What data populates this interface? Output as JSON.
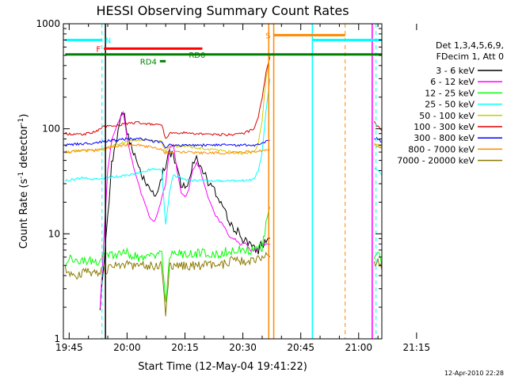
{
  "chart_data": {
    "type": "line",
    "title": "HESSI Observing Summary Count Rates",
    "xlabel": "Start Time (12-May-04 19:41:22)",
    "ylabel": "Count Rate (s",
    "ylabel_sup": "-1",
    "ylabel_mid": " detector",
    "ylabel_end": ")",
    "x_range_min": [
      -1.5,
      81
    ],
    "ylim": [
      1,
      1000
    ],
    "yscale": "log",
    "x_ticks": [
      "19:45",
      "20:00",
      "20:15",
      "20:30",
      "20:45",
      "21:00",
      "21:15"
    ],
    "y_ticks": [
      "1",
      "10",
      "100",
      "1000"
    ],
    "legend_header": [
      "Det 1,3,4,5,6,9,",
      "FDecim 1, Att 0"
    ],
    "footer": "12-Apr-2010 22:28",
    "series": [
      {
        "name": "3 - 6 keV",
        "color": "#000000",
        "x": [
          -1,
          8,
          10,
          11,
          12,
          13,
          14,
          15,
          16,
          17,
          18,
          19,
          20,
          21,
          22,
          23,
          24,
          25,
          26,
          27,
          28,
          29,
          30,
          31,
          32,
          33,
          34,
          35,
          36,
          37,
          38,
          39,
          40,
          41,
          42,
          43,
          44,
          45,
          46,
          47,
          48,
          49,
          50,
          51,
          52
        ],
        "y": [
          null,
          2,
          14,
          45,
          70,
          110,
          150,
          95,
          70,
          55,
          42,
          35,
          28,
          25,
          24,
          28,
          35,
          45,
          60,
          55,
          40,
          30,
          27,
          30,
          45,
          50,
          45,
          40,
          30,
          28,
          24,
          20,
          17,
          14,
          12,
          11,
          10,
          9,
          8,
          8,
          7,
          7,
          8,
          8,
          9
        ]
      },
      {
        "name": "6 - 12 keV",
        "color": "#ff00ff",
        "x": [
          -1,
          8,
          10,
          11,
          12,
          13,
          14,
          15,
          16,
          17,
          18,
          19,
          20,
          21,
          22,
          23,
          24,
          25,
          26,
          27,
          28,
          29,
          30,
          31,
          32,
          33,
          34,
          35,
          36,
          37,
          38,
          39,
          40,
          41,
          42,
          43,
          44,
          45,
          46,
          47,
          48,
          49,
          50,
          51,
          52
        ],
        "y": [
          null,
          2,
          40,
          75,
          100,
          120,
          145,
          80,
          55,
          38,
          30,
          22,
          18,
          14,
          13,
          16,
          22,
          30,
          65,
          70,
          40,
          25,
          22,
          27,
          40,
          48,
          40,
          30,
          22,
          18,
          15,
          13,
          12,
          10,
          9,
          9,
          8,
          8,
          8,
          7,
          7,
          7,
          8,
          8,
          8
        ]
      },
      {
        "name": "12 - 25 keV",
        "color": "#00ff00",
        "x": [
          -1,
          0,
          4,
          8,
          9,
          12,
          15,
          18,
          20,
          22,
          24,
          25,
          26,
          27,
          28,
          30,
          33,
          36,
          39,
          42,
          45,
          48,
          50,
          51,
          52,
          79,
          80,
          81
        ],
        "y": [
          5,
          6,
          5.5,
          5.5,
          6,
          6.5,
          6.5,
          6,
          6,
          6,
          6.5,
          2.2,
          6,
          6.5,
          6.5,
          6.5,
          6.5,
          6.5,
          6.5,
          7,
          7,
          7,
          7.5,
          12,
          18,
          6,
          7,
          5
        ]
      },
      {
        "name": "25 - 50 keV",
        "color": "#00ffff",
        "x": [
          -1,
          3,
          6,
          8,
          9,
          12,
          15,
          18,
          20,
          22,
          24,
          25,
          26,
          27,
          28,
          30,
          33,
          36,
          39,
          42,
          45,
          48,
          49,
          50,
          51,
          52,
          79,
          80,
          81
        ],
        "y": [
          32,
          34,
          33,
          34,
          34,
          35,
          36,
          38,
          40,
          42,
          40,
          12,
          25,
          36,
          35,
          33,
          32,
          32,
          32,
          32,
          32,
          33,
          40,
          60,
          150,
          300,
          42,
          40,
          36
        ]
      },
      {
        "name": "50 - 100 keV",
        "color": "#cccc00",
        "x": [
          -1,
          3,
          6,
          8,
          9,
          12,
          15,
          18,
          20,
          22,
          24,
          25,
          26,
          27,
          28,
          30,
          33,
          36,
          39,
          42,
          45,
          48,
          49,
          50,
          51,
          52,
          79,
          80,
          81
        ],
        "y": [
          60,
          62,
          62,
          63,
          64,
          70,
          75,
          78,
          80,
          78,
          75,
          60,
          70,
          68,
          68,
          68,
          66,
          64,
          62,
          60,
          58,
          60,
          75,
          120,
          300,
          500,
          75,
          70,
          65
        ]
      },
      {
        "name": "100 - 300 keV",
        "color": "#dd0000",
        "x": [
          -1,
          3,
          6,
          8,
          9,
          12,
          15,
          18,
          20,
          22,
          24,
          25,
          26,
          27,
          28,
          30,
          33,
          36,
          39,
          42,
          45,
          48,
          49,
          50,
          51,
          52,
          79,
          80,
          81
        ],
        "y": [
          90,
          88,
          92,
          98,
          105,
          108,
          112,
          115,
          112,
          110,
          108,
          80,
          90,
          92,
          92,
          92,
          90,
          88,
          88,
          88,
          90,
          100,
          130,
          200,
          350,
          480,
          115,
          105,
          95
        ]
      },
      {
        "name": "300 - 800 keV",
        "color": "#0000ff",
        "x": [
          -1,
          3,
          6,
          8,
          9,
          12,
          15,
          18,
          20,
          22,
          24,
          25,
          26,
          27,
          28,
          30,
          33,
          36,
          39,
          42,
          45,
          48,
          50,
          51,
          52,
          79,
          80,
          81
        ],
        "y": [
          70,
          72,
          73,
          75,
          76,
          78,
          80,
          80,
          78,
          76,
          74,
          65,
          70,
          70,
          70,
          70,
          70,
          70,
          70,
          70,
          70,
          70,
          72,
          75,
          78,
          82,
          80,
          75
        ]
      },
      {
        "name": "800 - 7000 keV",
        "color": "#ff8800",
        "x": [
          -1,
          3,
          6,
          8,
          9,
          12,
          15,
          18,
          20,
          22,
          24,
          25,
          26,
          27,
          28,
          30,
          33,
          36,
          39,
          42,
          45,
          48,
          50,
          51,
          52,
          79,
          80,
          81
        ],
        "y": [
          60,
          62,
          62,
          63,
          64,
          68,
          70,
          70,
          68,
          66,
          64,
          58,
          60,
          60,
          60,
          60,
          59,
          59,
          59,
          59,
          60,
          61,
          62,
          63,
          64,
          70,
          68,
          65
        ]
      },
      {
        "name": "7000 - 20000 keV",
        "color": "#8b7a00",
        "x": [
          -1,
          2,
          4,
          6,
          8,
          9,
          12,
          15,
          18,
          20,
          22,
          24,
          25,
          26,
          28,
          30,
          33,
          36,
          39,
          42,
          45,
          48,
          50,
          51,
          52,
          79,
          80,
          81
        ],
        "y": [
          4.5,
          4,
          4.5,
          4,
          4.5,
          4.5,
          5,
          5,
          5,
          5,
          5,
          5,
          1.8,
          5,
          5,
          5,
          5,
          5,
          5,
          5.5,
          5.5,
          5.5,
          6,
          6,
          6,
          5,
          5.5,
          4.5
        ]
      }
    ],
    "annotations": {
      "flags": [
        {
          "label": "N",
          "color": "#00ffff",
          "x1": -1,
          "x2": 8.5,
          "y": 700
        },
        {
          "label": "F",
          "color": "#ff0000",
          "x1": 9,
          "x2": 34.5,
          "y": 580
        },
        {
          "label": "RD0",
          "color": "#008000",
          "x1": -1,
          "x2": 81,
          "y": 510
        },
        {
          "label": "RD4",
          "color": "#008000",
          "x1": 23.5,
          "x2": 25,
          "y": 440
        },
        {
          "label": "S",
          "color": "#ff8800",
          "x1": 53,
          "x2": 71.5,
          "y": 780
        },
        {
          "label": "",
          "color": "#00ffff",
          "x1": 63,
          "x2": 81,
          "y": 700
        }
      ],
      "vlines": [
        {
          "x": 8.5,
          "color": "#00ffff",
          "style": "dashed"
        },
        {
          "x": 9.4,
          "color": "#000000",
          "style": "solid"
        },
        {
          "x": 51.7,
          "color": "#ff8800",
          "style": "solid"
        },
        {
          "x": 53,
          "color": "#ff8800",
          "style": "solid"
        },
        {
          "x": 63,
          "color": "#00ffff",
          "style": "solid"
        },
        {
          "x": 71.5,
          "color": "#ff8800",
          "style": "dashed"
        },
        {
          "x": 78.5,
          "color": "#ff00ff",
          "style": "solid"
        },
        {
          "x": 79.5,
          "color": "#00ffff",
          "style": "dashed"
        }
      ]
    }
  }
}
